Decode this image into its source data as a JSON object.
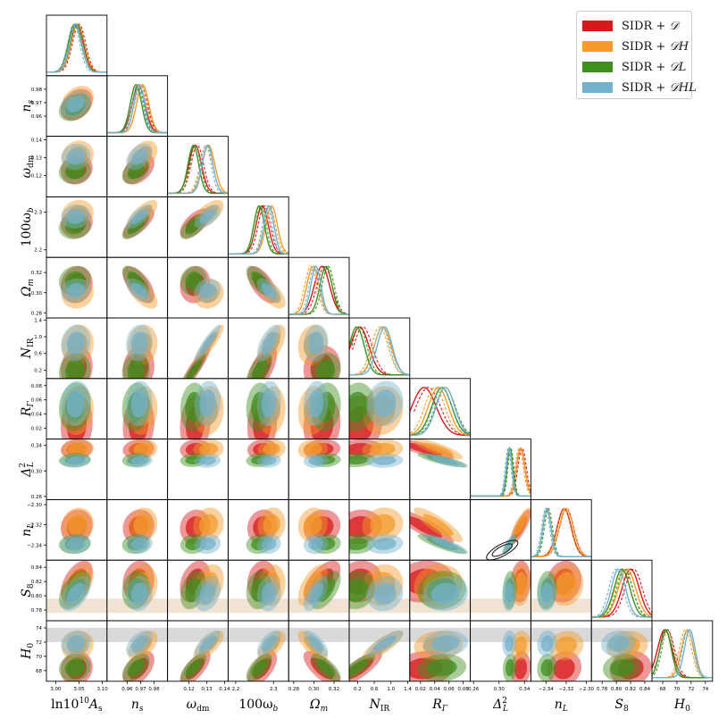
{
  "chart_data": {
    "type": "corner",
    "parameters": [
      {
        "key": "lnAs",
        "label": "ln10¹⁰A_s",
        "label_main": "ln10",
        "label_sup": "10",
        "label_tail": "A",
        "label_sub": "s",
        "range": [
          2.98,
          3.11
        ],
        "ticks": [
          "3.00",
          "3.05",
          "3.10"
        ],
        "tick_values": [
          3.0,
          3.05,
          3.1
        ]
      },
      {
        "key": "ns",
        "label": "n_s",
        "label_main": "n",
        "label_sup": "",
        "label_tail": "",
        "label_sub": "s",
        "range": [
          0.945,
          0.99
        ],
        "ticks": [
          "0.96",
          "0.97",
          "0.98"
        ],
        "tick_values": [
          0.96,
          0.97,
          0.98
        ]
      },
      {
        "key": "wdm",
        "label": "ω_dm",
        "label_main": "ω",
        "label_sup": "",
        "label_tail": "",
        "label_sub": "dm",
        "range": [
          0.108,
          0.142
        ],
        "ticks": [
          "0.12",
          "0.13",
          "0.14"
        ],
        "tick_values": [
          0.12,
          0.13,
          0.14
        ]
      },
      {
        "key": "wb",
        "label": "100ω_b",
        "label_main": "100ω",
        "label_sup": "",
        "label_tail": "",
        "label_sub": "b",
        "range": [
          2.18,
          2.34
        ],
        "ticks": [
          "2.2",
          "2.3"
        ],
        "tick_values": [
          2.2,
          2.3
        ]
      },
      {
        "key": "Om",
        "label": "Ω_m",
        "label_main": "Ω",
        "label_sup": "",
        "label_tail": "",
        "label_sub": "m",
        "range": [
          0.275,
          0.335
        ],
        "ticks": [
          "0.28",
          "0.30",
          "0.32"
        ],
        "tick_values": [
          0.28,
          0.3,
          0.32
        ]
      },
      {
        "key": "NIR",
        "label": "N_IR",
        "label_main": "N",
        "label_sup": "",
        "label_tail": "",
        "label_sub": "IR",
        "range": [
          0.0,
          1.45
        ],
        "ticks": [
          "0.2",
          "0.6",
          "1.0",
          "1.4"
        ],
        "tick_values": [
          0.2,
          0.6,
          1.0,
          1.4
        ]
      },
      {
        "key": "RG",
        "label": "R_Γ",
        "label_main": "R",
        "label_sup": "",
        "label_tail": "",
        "label_sub": "Γ",
        "range": [
          0.005,
          0.09
        ],
        "ticks": [
          "0.02",
          "0.04",
          "0.06",
          "0.08"
        ],
        "tick_values": [
          0.02,
          0.04,
          0.06,
          0.08
        ]
      },
      {
        "key": "D2L",
        "label": "Δ²_L",
        "label_main": "Δ",
        "label_sup": "2",
        "label_tail": "",
        "label_sub": "L",
        "range": [
          0.255,
          0.35
        ],
        "ticks": [
          "0.26",
          "0.30",
          "0.34"
        ],
        "tick_values": [
          0.26,
          0.3,
          0.34
        ]
      },
      {
        "key": "nL",
        "label": "n_L",
        "label_main": "n",
        "label_sup": "",
        "label_tail": "",
        "label_sub": "L",
        "range": [
          -2.355,
          -2.295
        ],
        "ticks": [
          "−2.34",
          "−2.32",
          "−2.30"
        ],
        "tick_values": [
          -2.34,
          -2.32,
          -2.3
        ]
      },
      {
        "key": "S8",
        "label": "S_8",
        "label_main": "S",
        "label_sup": "",
        "label_tail": "",
        "label_sub": "8",
        "range": [
          0.765,
          0.85
        ],
        "ticks": [
          "0.78",
          "0.80",
          "0.82",
          "0.84"
        ],
        "tick_values": [
          0.78,
          0.8,
          0.82,
          0.84
        ]
      },
      {
        "key": "H0",
        "label": "H_0",
        "label_main": "H",
        "label_sup": "",
        "label_tail": "",
        "label_sub": "0",
        "range": [
          66.5,
          75.0
        ],
        "ticks": [
          "68",
          "70",
          "72",
          "74"
        ],
        "tick_values": [
          68,
          70,
          72,
          74
        ]
      }
    ],
    "series": [
      {
        "name": "SIDR + D",
        "prefix": "SIDR +",
        "data": "𝒟",
        "color": "#d7191c",
        "mean": {
          "lnAs": 3.045,
          "ns": 0.9685,
          "wdm": 0.1235,
          "wb": 2.27,
          "Om": 0.308,
          "NIR": 0.25,
          "RG": 0.025,
          "D2L": 0.334,
          "nL": -2.322,
          "S8": 0.82,
          "H0": 68.3
        },
        "sigma": {
          "lnAs": 0.014,
          "ns": 0.0048,
          "wdm": 0.0035,
          "wb": 0.016,
          "Om": 0.0075,
          "NIR": 0.22,
          "RG": 0.017,
          "D2L": 0.0065,
          "nL": 0.007,
          "S8": 0.012,
          "H0": 1.0
        }
      },
      {
        "name": "SIDR + DH",
        "prefix": "SIDR +",
        "data": "𝒟H",
        "color": "#f39b2b",
        "mean": {
          "lnAs": 3.047,
          "ns": 0.9715,
          "wdm": 0.131,
          "wb": 2.295,
          "Om": 0.299,
          "NIR": 0.8,
          "RG": 0.045,
          "D2L": 0.334,
          "nL": -2.32,
          "S8": 0.815,
          "H0": 71.5
        },
        "sigma": {
          "lnAs": 0.014,
          "ns": 0.0045,
          "wdm": 0.0035,
          "wb": 0.015,
          "Om": 0.006,
          "NIR": 0.2,
          "RG": 0.014,
          "D2L": 0.0065,
          "nL": 0.007,
          "S8": 0.012,
          "H0": 0.85
        }
      },
      {
        "name": "SIDR + DL",
        "prefix": "SIDR +",
        "data": "𝒟L",
        "color": "#3f8f1e",
        "mean": {
          "lnAs": 3.041,
          "ns": 0.9665,
          "wdm": 0.1225,
          "wb": 2.262,
          "Om": 0.312,
          "NIR": 0.18,
          "RG": 0.05,
          "D2L": 0.317,
          "nL": -2.339,
          "S8": 0.808,
          "H0": 68.4
        },
        "sigma": {
          "lnAs": 0.014,
          "ns": 0.0042,
          "wdm": 0.003,
          "wb": 0.014,
          "Om": 0.006,
          "NIR": 0.18,
          "RG": 0.014,
          "D2L": 0.0045,
          "nL": 0.004,
          "S8": 0.011,
          "H0": 0.8
        }
      },
      {
        "name": "SIDR + DHL",
        "prefix": "SIDR +",
        "data": "𝒟HL",
        "color": "#74b2cc",
        "mean": {
          "lnAs": 3.043,
          "ns": 0.969,
          "wdm": 0.1305,
          "wb": 2.288,
          "Om": 0.302,
          "NIR": 0.85,
          "RG": 0.055,
          "D2L": 0.316,
          "nL": -2.339,
          "S8": 0.803,
          "H0": 71.8
        },
        "sigma": {
          "lnAs": 0.013,
          "ns": 0.004,
          "wdm": 0.003,
          "wb": 0.013,
          "Om": 0.005,
          "NIR": 0.18,
          "RG": 0.013,
          "D2L": 0.0045,
          "nL": 0.004,
          "S8": 0.01,
          "H0": 0.75
        }
      }
    ],
    "prior_bands": {
      "S8": {
        "low": 0.776,
        "high": 0.796,
        "color": "#e9d7c0"
      },
      "H0": {
        "low": 72.0,
        "high": 74.0,
        "color": "#c9c9c9"
      }
    },
    "legend_position": "top-right"
  }
}
